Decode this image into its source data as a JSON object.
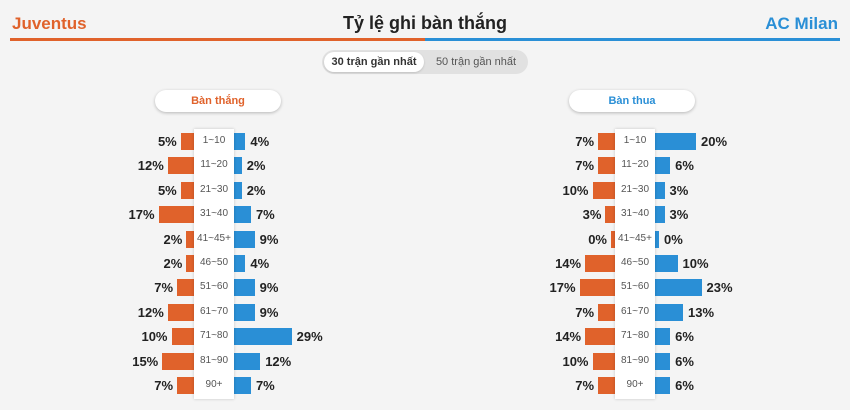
{
  "header": {
    "home_team": "Juventus",
    "away_team": "AC Milan",
    "title": "Tỷ lệ ghi bàn thắng"
  },
  "toggle": {
    "options": [
      "30 trận gần nhất",
      "50 trận gần nhất"
    ],
    "selected": "30 trận gần nhất"
  },
  "colors": {
    "home": "#e0622b",
    "away": "#2a8fd6"
  },
  "scored": {
    "label": "Bàn thắng",
    "rows": [
      {
        "interval": "1~10",
        "home": "5%",
        "away": "4%",
        "home_value": 5,
        "away_value": 4
      },
      {
        "interval": "11~20",
        "home": "12%",
        "away": "2%",
        "home_value": 12,
        "away_value": 2
      },
      {
        "interval": "21~30",
        "home": "5%",
        "away": "2%",
        "home_value": 5,
        "away_value": 2
      },
      {
        "interval": "31~40",
        "home": "17%",
        "away": "7%",
        "home_value": 17,
        "away_value": 7
      },
      {
        "interval": "41~45+",
        "home": "2%",
        "away": "9%",
        "home_value": 2,
        "away_value": 9
      },
      {
        "interval": "46~50",
        "home": "2%",
        "away": "4%",
        "home_value": 2,
        "away_value": 4
      },
      {
        "interval": "51~60",
        "home": "7%",
        "away": "9%",
        "home_value": 7,
        "away_value": 9
      },
      {
        "interval": "61~70",
        "home": "12%",
        "away": "9%",
        "home_value": 12,
        "away_value": 9
      },
      {
        "interval": "71~80",
        "home": "10%",
        "away": "29%",
        "home_value": 10,
        "away_value": 29
      },
      {
        "interval": "81~90",
        "home": "15%",
        "away": "12%",
        "home_value": 15,
        "away_value": 12
      },
      {
        "interval": "90+",
        "home": "7%",
        "away": "7%",
        "home_value": 7,
        "away_value": 7
      }
    ]
  },
  "conceded": {
    "label": "Bàn thua",
    "rows": [
      {
        "interval": "1~10",
        "home": "7%",
        "away": "20%",
        "home_value": 7,
        "away_value": 20
      },
      {
        "interval": "11~20",
        "home": "7%",
        "away": "6%",
        "home_value": 7,
        "away_value": 6
      },
      {
        "interval": "21~30",
        "home": "10%",
        "away": "3%",
        "home_value": 10,
        "away_value": 3
      },
      {
        "interval": "31~40",
        "home": "3%",
        "away": "3%",
        "home_value": 3,
        "away_value": 3
      },
      {
        "interval": "41~45+",
        "home": "0%",
        "away": "0%",
        "home_value": 0,
        "away_value": 0
      },
      {
        "interval": "46~50",
        "home": "14%",
        "away": "10%",
        "home_value": 14,
        "away_value": 10
      },
      {
        "interval": "51~60",
        "home": "17%",
        "away": "23%",
        "home_value": 17,
        "away_value": 23
      },
      {
        "interval": "61~70",
        "home": "7%",
        "away": "13%",
        "home_value": 7,
        "away_value": 13
      },
      {
        "interval": "71~80",
        "home": "14%",
        "away": "6%",
        "home_value": 14,
        "away_value": 6
      },
      {
        "interval": "81~90",
        "home": "10%",
        "away": "6%",
        "home_value": 10,
        "away_value": 6
      },
      {
        "interval": "90+",
        "home": "7%",
        "away": "6%",
        "home_value": 7,
        "away_value": 6
      }
    ]
  }
}
